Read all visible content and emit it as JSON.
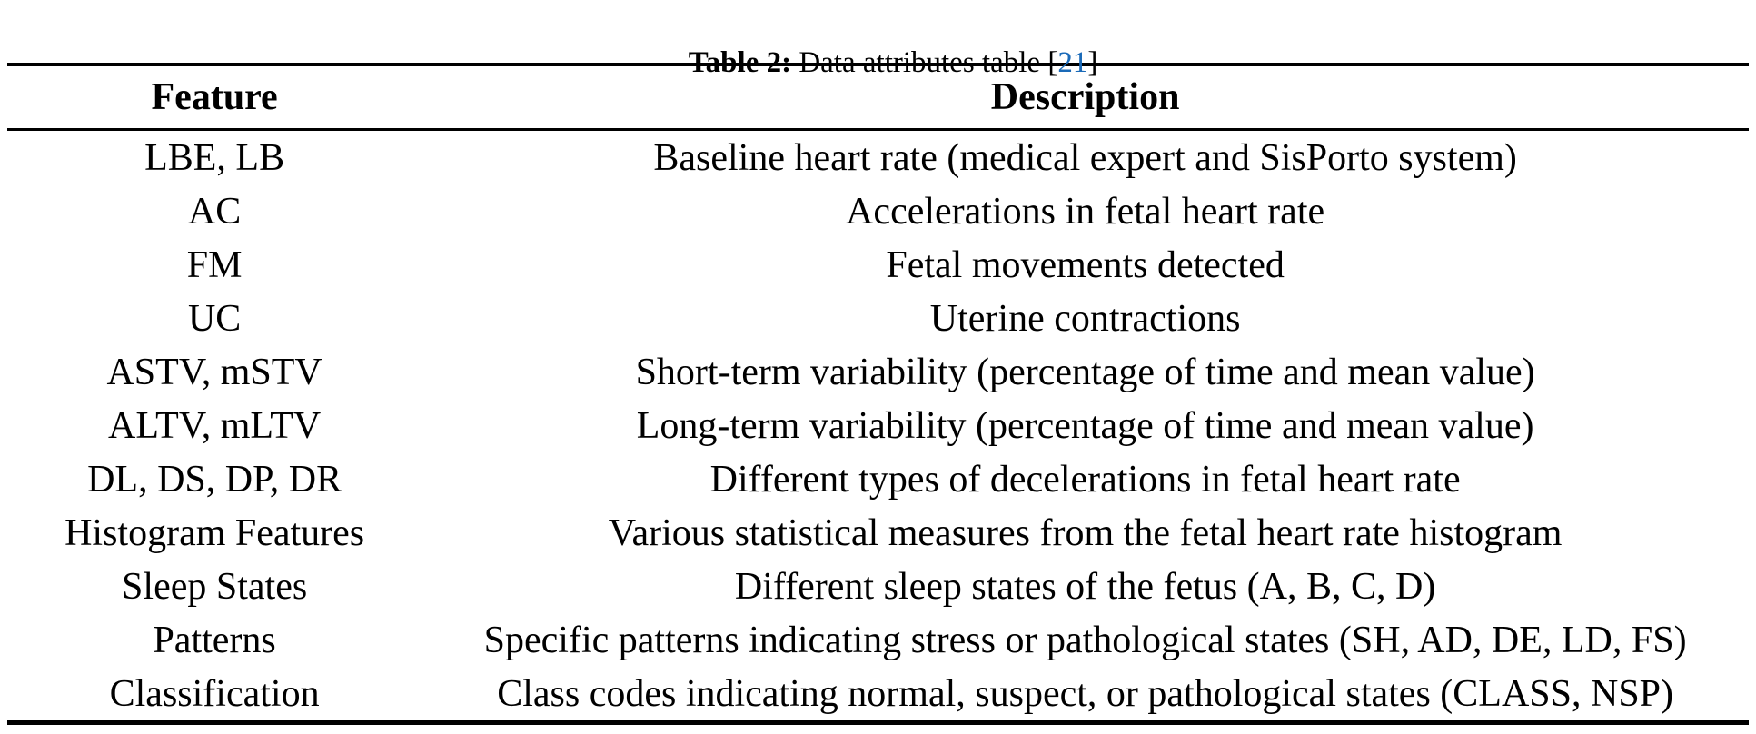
{
  "caption": {
    "label": "Table 2:",
    "text": " Data attributes table ",
    "citation_open": "[",
    "citation": "21",
    "citation_close": "]"
  },
  "table": {
    "headers": {
      "feature": "Feature",
      "description": "Description"
    },
    "rows": [
      {
        "feature": "LBE, LB",
        "description": "Baseline heart rate (medical expert and SisPorto system)"
      },
      {
        "feature": "AC",
        "description": "Accelerations in fetal heart rate"
      },
      {
        "feature": "FM",
        "description": "Fetal movements detected"
      },
      {
        "feature": "UC",
        "description": "Uterine contractions"
      },
      {
        "feature": "ASTV, mSTV",
        "description": "Short-term variability (percentage of time and mean value)"
      },
      {
        "feature": "ALTV, mLTV",
        "description": "Long-term variability (percentage of time and mean value)"
      },
      {
        "feature": "DL, DS, DP, DR",
        "description": "Different types of decelerations in fetal heart rate"
      },
      {
        "feature": "Histogram Features",
        "description": "Various statistical measures from the fetal heart rate histogram"
      },
      {
        "feature": "Sleep States",
        "description": "Different sleep states of the fetus (A, B, C, D)"
      },
      {
        "feature": "Patterns",
        "description": "Specific patterns indicating stress or pathological states (SH, AD, DE, LD, FS)"
      },
      {
        "feature": "Classification",
        "description": "Class codes indicating normal, suspect, or pathological states (CLASS, NSP)"
      }
    ]
  },
  "colors": {
    "text": "#000000",
    "citation_link": "#1a6ab8",
    "background": "#ffffff"
  }
}
